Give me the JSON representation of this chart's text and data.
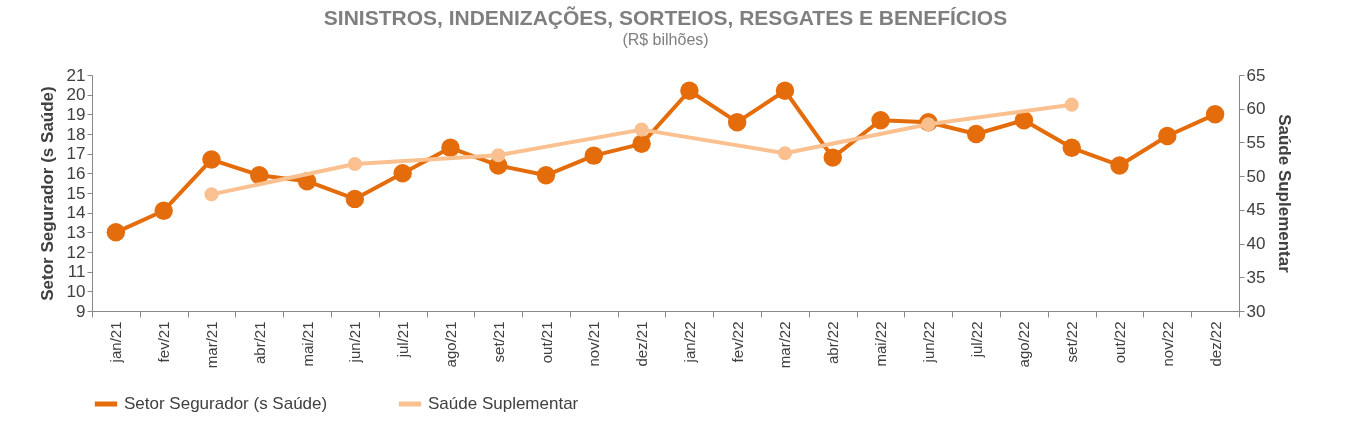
{
  "chart_data": {
    "type": "line",
    "title": "SINISTROS, INDENIZAÇÕES, SORTEIOS, RESGATES E BENEFÍCIOS",
    "subtitle": "(R$ bilhões)",
    "ylabel": "Setor Segurador (s Saúde)",
    "y2label": "Saúde Suplementar",
    "categories": [
      "jan/21",
      "fev/21",
      "mar/21",
      "abr/21",
      "mai/21",
      "jun/21",
      "jul/21",
      "ago/21",
      "set/21",
      "out/21",
      "nov/21",
      "dez/21",
      "jan/22",
      "fev/22",
      "mar/22",
      "abr/22",
      "mai/22",
      "jun/22",
      "jul/22",
      "ago/22",
      "set/22",
      "out/22",
      "nov/22",
      "dez/22"
    ],
    "series": [
      {
        "name": "Setor Segurador (s Saúde)",
        "color": "#e46c0a",
        "values": [
          13.0,
          14.1,
          16.7,
          15.9,
          15.6,
          14.7,
          16.0,
          17.3,
          16.4,
          15.9,
          16.9,
          17.5,
          20.2,
          18.6,
          20.2,
          16.8,
          18.7,
          18.6,
          18.0,
          18.7,
          17.3,
          16.4,
          17.9,
          19.0
        ]
      },
      {
        "name": "Saúde Suplementar",
        "color": "#fac090",
        "axis": "y2",
        "values": [
          null,
          null,
          47.3,
          null,
          null,
          51.8,
          null,
          null,
          53.1,
          null,
          null,
          56.9,
          null,
          null,
          53.4,
          null,
          null,
          57.7,
          null,
          null,
          60.6,
          null,
          null,
          null
        ]
      }
    ],
    "ylim": [
      9,
      21
    ],
    "yticks": [
      9,
      10,
      11,
      12,
      13,
      14,
      15,
      16,
      17,
      18,
      19,
      20,
      21
    ],
    "y2lim": [
      30,
      65
    ],
    "y2ticks": [
      30,
      35,
      40,
      45,
      50,
      55,
      60,
      65
    ],
    "legend": "bottom",
    "marker": "circle",
    "line_style": "solid",
    "grid": false
  }
}
